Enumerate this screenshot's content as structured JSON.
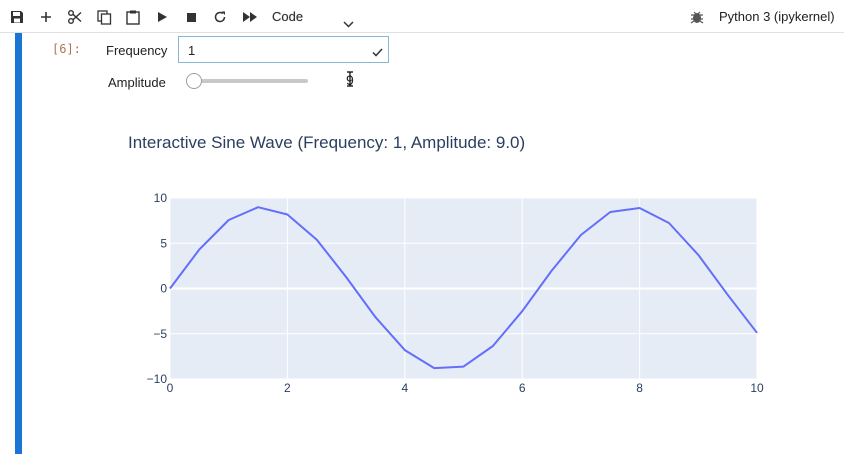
{
  "toolbar": {
    "buttons": [
      {
        "name": "save-icon"
      },
      {
        "name": "add-cell-icon"
      },
      {
        "name": "cut-icon"
      },
      {
        "name": "copy-icon"
      },
      {
        "name": "paste-icon"
      },
      {
        "name": "run-icon"
      },
      {
        "name": "stop-icon"
      },
      {
        "name": "restart-icon"
      },
      {
        "name": "run-all-icon"
      }
    ],
    "cell_type": "Code",
    "kernel_name": "Python 3 (ipykernel)"
  },
  "cell": {
    "prompt": "[6]:",
    "frequency_label": "Frequency",
    "frequency_value": "1",
    "amplitude_label": "Amplitude",
    "amplitude_readout": "9",
    "amplitude_fraction": 0.0
  },
  "plot": {
    "title": "Interactive Sine Wave (Frequency: 1, Amplitude: 9.0)"
  },
  "chart_data": {
    "type": "line",
    "title": "Interactive Sine Wave (Frequency: 1, Amplitude: 9.0)",
    "xlabel": "",
    "ylabel": "",
    "xlim": [
      0,
      10
    ],
    "ylim": [
      -10,
      10
    ],
    "x_ticks": [
      "0",
      "2",
      "4",
      "6",
      "8",
      "10"
    ],
    "y_ticks": [
      "10",
      "5",
      "0",
      "−5",
      "−10"
    ],
    "grid": true,
    "series": [
      {
        "color": "#636efa",
        "x": [
          0,
          0.5,
          1,
          1.5,
          2,
          2.5,
          3,
          3.5,
          4,
          4.5,
          5,
          5.5,
          6,
          6.5,
          7,
          7.5,
          8,
          8.5,
          9,
          9.5,
          10
        ],
        "y": [
          0,
          4.31,
          7.57,
          8.98,
          8.18,
          5.39,
          1.27,
          -3.16,
          -6.81,
          -8.8,
          -8.63,
          -6.35,
          -2.51,
          1.94,
          5.91,
          8.45,
          8.9,
          7.24,
          3.71,
          -0.68,
          -4.9
        ]
      }
    ]
  }
}
